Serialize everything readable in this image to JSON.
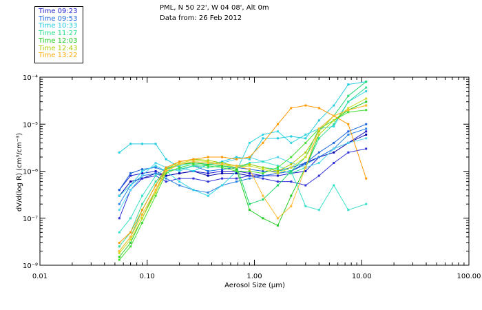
{
  "header": {
    "line1": "PML, N 50 22', W 04 08', Alt 0m",
    "line2": "Data from: 26 Feb 2012"
  },
  "chart_data": {
    "type": "line",
    "xscale": "log",
    "yscale": "log",
    "xlabel": "Aerosol Size (µm)",
    "ylabel": "dV/d(log R) (cm³/cm⁻³)",
    "xlim": [
      0.01,
      100
    ],
    "ylim": [
      1e-08,
      0.0001
    ],
    "x_tick_labels": [
      "0.01",
      "0.10",
      "1.00",
      "10.00",
      "100.00"
    ],
    "y_tick_labels": [
      "10⁻⁸",
      "10⁻⁷",
      "10⁻⁶",
      "10⁻⁵",
      "10⁻⁴"
    ],
    "x": [
      0.055,
      0.07,
      0.09,
      0.12,
      0.15,
      0.2,
      0.27,
      0.37,
      0.5,
      0.68,
      0.9,
      1.2,
      1.65,
      2.2,
      3.0,
      4.0,
      5.5,
      7.5,
      11.0
    ],
    "series": [
      {
        "name": "Time 09:23",
        "color": "#1c1ccc",
        "values": [
          4e-07,
          8e-07,
          9e-07,
          1e-06,
          8e-07,
          9e-07,
          1e-06,
          9e-07,
          1e-06,
          1e-06,
          9e-07,
          8e-07,
          8e-07,
          9e-07,
          1e-06,
          2e-06,
          3e-06,
          4e-06,
          7e-06
        ]
      },
      {
        "name": "Time 09:23",
        "color": "#0000aa",
        "values": [
          3e-07,
          6e-07,
          7e-07,
          9e-07,
          8e-07,
          9e-07,
          1e-06,
          8e-07,
          9e-07,
          9e-07,
          8e-07,
          8e-07,
          9e-07,
          1e-06,
          1.5e-06,
          2e-06,
          2.5e-06,
          4e-06,
          6e-06
        ]
      },
      {
        "name": "Time 09:23",
        "color": "#3030d8",
        "values": [
          1e-07,
          4e-07,
          7e-07,
          8e-07,
          6e-07,
          7e-07,
          7e-07,
          6e-07,
          7e-07,
          7e-07,
          8e-07,
          7e-07,
          6e-07,
          6e-07,
          5e-07,
          8e-07,
          1.5e-06,
          2.5e-06,
          3e-06
        ]
      },
      {
        "name": "Time 09:53",
        "color": "#1a66dd",
        "values": [
          4e-07,
          9e-07,
          1.1e-06,
          1.2e-06,
          1e-06,
          1.1e-06,
          1.3e-06,
          1e-06,
          1.1e-06,
          1.2e-06,
          1.1e-06,
          1e-06,
          1e-06,
          1.2e-06,
          1.5e-06,
          2.5e-06,
          4e-06,
          7e-06,
          1e-05
        ]
      },
      {
        "name": "Time 09:53",
        "color": "#2a82e6",
        "values": [
          2e-07,
          5e-07,
          8e-07,
          9e-07,
          7e-07,
          5e-07,
          4e-07,
          3.5e-07,
          5e-07,
          6e-07,
          7e-07,
          8e-07,
          9e-07,
          1e-06,
          1.4e-06,
          2e-06,
          3e-06,
          6e-06,
          8e-06
        ]
      },
      {
        "name": "Time 10:33",
        "color": "#22cce0",
        "values": [
          2.5e-06,
          3.8e-06,
          3.8e-06,
          3.8e-06,
          1.8e-06,
          1.2e-06,
          1e-06,
          1.4e-06,
          1.6e-06,
          2e-06,
          1.8e-06,
          5e-06,
          5e-06,
          5.5e-06,
          5e-06,
          1.2e-05,
          2.5e-05,
          7e-05,
          8e-05
        ]
      },
      {
        "name": "Time 10:33",
        "color": "#33d4e4",
        "values": [
          3e-07,
          5e-07,
          1e-06,
          1.3e-06,
          1e-06,
          6e-07,
          4e-07,
          3e-07,
          5e-07,
          1e-06,
          4e-06,
          6e-06,
          7e-06,
          4e-06,
          6e-06,
          8e-06,
          9e-06,
          3e-05,
          5e-05
        ]
      },
      {
        "name": "Time 10:33",
        "color": "#55d6ee",
        "values": [
          1.5e-07,
          4e-07,
          8e-07,
          1.5e-06,
          1.2e-06,
          1e-06,
          1.3e-06,
          1.4e-06,
          1.5e-06,
          1.8e-06,
          2e-06,
          1.6e-06,
          2e-06,
          1.5e-06,
          1.2e-06,
          1.5e-06,
          3e-06,
          4e-06,
          5e-06
        ]
      },
      {
        "name": "Time 10:33",
        "color": "#33e0c8",
        "values": [
          5e-08,
          1e-07,
          3e-07,
          8e-07,
          1.2e-06,
          1.3e-06,
          1.5e-06,
          1.4e-06,
          1.3e-06,
          1.2e-06,
          1.5e-06,
          1.6e-06,
          1.3e-06,
          1e-06,
          1.8e-07,
          1.5e-07,
          5e-07,
          1.5e-07,
          2e-07
        ]
      },
      {
        "name": "Time 11:27",
        "color": "#33dd99",
        "values": [
          2.5e-08,
          5e-08,
          2e-07,
          6e-07,
          1e-06,
          1.1e-06,
          1.3e-06,
          1.2e-06,
          1.3e-06,
          1.2e-06,
          1.4e-06,
          1.2e-06,
          1.1e-06,
          9e-07,
          1.2e-06,
          5e-06,
          1e-05,
          3e-05,
          6e-05
        ]
      },
      {
        "name": "Time 11:27",
        "color": "#22d870",
        "values": [
          2e-08,
          4e-08,
          1.5e-07,
          5e-07,
          1.1e-06,
          1.4e-06,
          1.6e-06,
          1.5e-06,
          1.4e-06,
          1.3e-06,
          2e-07,
          2.5e-07,
          5e-07,
          1e-06,
          2e-06,
          8e-06,
          1.5e-05,
          4e-05,
          8e-05
        ]
      },
      {
        "name": "Time 12:03",
        "color": "#22cc22",
        "values": [
          1.5e-08,
          3e-08,
          1e-07,
          4e-07,
          1e-06,
          1.4e-06,
          1.5e-06,
          1.4e-06,
          1.3e-06,
          1.1e-06,
          1.5e-07,
          1e-07,
          7e-08,
          3e-07,
          1.2e-06,
          6e-06,
          1.2e-05,
          2e-05,
          3e-05
        ]
      },
      {
        "name": "Time 12:03",
        "color": "#44dd33",
        "values": [
          1.3e-08,
          2.5e-08,
          8e-08,
          3e-07,
          9e-07,
          1.2e-06,
          1.4e-06,
          1.3e-06,
          1.2e-06,
          1e-06,
          1e-06,
          9e-07,
          1.2e-06,
          2e-06,
          4e-06,
          8e-06,
          1.2e-05,
          1.8e-05,
          2e-05
        ]
      },
      {
        "name": "Time 12:43",
        "color": "#aacc00",
        "values": [
          2e-08,
          4e-08,
          1.2e-07,
          4e-07,
          1.1e-06,
          1.6e-06,
          1.8e-06,
          1.7e-06,
          1.5e-06,
          1.3e-06,
          1.4e-06,
          1.2e-06,
          1e-06,
          1.4e-06,
          2.5e-06,
          7e-06,
          1.5e-05,
          2e-05,
          2.5e-05
        ]
      },
      {
        "name": "Time 12:43",
        "color": "#ccdd22",
        "values": [
          1.8e-08,
          3.5e-08,
          1e-07,
          3.5e-07,
          1e-06,
          1.5e-06,
          1.7e-06,
          1.6e-06,
          1.4e-06,
          1.2e-06,
          1.3e-06,
          1.1e-06,
          9e-07,
          1.2e-06,
          2e-06,
          6e-06,
          1.2e-05,
          2.2e-05,
          3.5e-05
        ]
      },
      {
        "name": "Time 13:22",
        "color": "#ff9900",
        "values": [
          3e-08,
          5e-08,
          1.5e-07,
          5e-07,
          1.2e-06,
          1.6e-06,
          1.8e-06,
          2e-06,
          2e-06,
          1.8e-06,
          2e-06,
          4e-06,
          1e-05,
          2.2e-05,
          2.5e-05,
          2.2e-05,
          1.5e-05,
          1e-05,
          7e-07
        ]
      },
      {
        "name": "Time 13:22",
        "color": "#ffbb33",
        "values": [
          2e-08,
          4e-08,
          1.2e-07,
          4e-07,
          1e-06,
          1.4e-06,
          1.6e-06,
          1.5e-06,
          1.4e-06,
          1.3e-06,
          1.1e-06,
          3e-07,
          1e-07,
          1.8e-07,
          1.2e-06,
          8e-06,
          1.5e-05,
          2e-05,
          2.5e-05
        ]
      }
    ],
    "legend": [
      {
        "label": "Time 09:23",
        "color": "#1c1ccc"
      },
      {
        "label": "Time 09:53",
        "color": "#1a66dd"
      },
      {
        "label": "Time 10:33",
        "color": "#22cce0"
      },
      {
        "label": "Time 11:27",
        "color": "#22dd88"
      },
      {
        "label": "Time 12:03",
        "color": "#22cc22"
      },
      {
        "label": "Time 12:43",
        "color": "#aacc00"
      },
      {
        "label": "Time 13:22",
        "color": "#ffaa00"
      }
    ]
  }
}
